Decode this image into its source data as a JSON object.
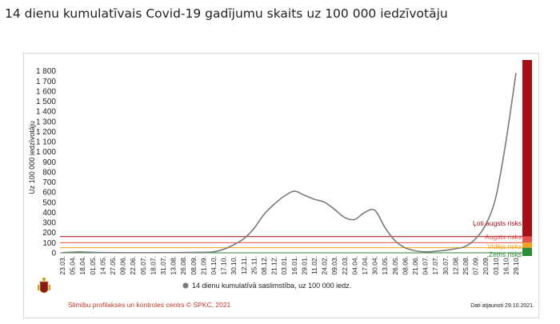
{
  "title": "14 dienu kumulatīvais Covid-19 gadījumu skaits uz 100 000 iedzīvotāju",
  "colors": {
    "line": "#7a7a7a",
    "very_high": "#a50f15",
    "high": "#e8504e",
    "medium": "#f4a11d",
    "low": "#2e8b3a",
    "grid": "#e6e6e6"
  },
  "chart_data": {
    "type": "line",
    "title": "",
    "xlabel": "",
    "ylabel": "Uz 100 000 iedzīvotāju",
    "ylim": [
      0,
      1900
    ],
    "yticks": [
      0,
      100,
      200,
      300,
      400,
      500,
      600,
      700,
      800,
      900,
      1000,
      1100,
      1200,
      1300,
      1400,
      1500,
      1600,
      1700,
      1800
    ],
    "ytick_labels": [
      "0",
      "100",
      "200",
      "300",
      "400",
      "500",
      "600",
      "700",
      "800",
      "900",
      "1 000",
      "1 100",
      "1 200",
      "1 300",
      "1 400",
      "1 500",
      "1 600",
      "1 700",
      "1 800"
    ],
    "xticks": [
      "23.03.",
      "05.04.",
      "18.04.",
      "01.05.",
      "14.05.",
      "27.05.",
      "09.06.",
      "22.06.",
      "05.07.",
      "18.07.",
      "31.07.",
      "13.08.",
      "26.08.",
      "08.09.",
      "21.09.",
      "04.10.",
      "17.10.",
      "30.10.",
      "12.11.",
      "25.11.",
      "08.12.",
      "21.12.",
      "03.01.",
      "16.01.",
      "29.01.",
      "11.02.",
      "24.02.",
      "09.03.",
      "22.03.",
      "04.04.",
      "17.04.",
      "30.04.",
      "13.05.",
      "26.05.",
      "08.06.",
      "21.06.",
      "04.07.",
      "17.07.",
      "30.07.",
      "12.08.",
      "25.08.",
      "07.09.",
      "20.09.",
      "03.10.",
      "16.10.",
      "29.10."
    ],
    "series": [
      {
        "name": "14 dienu kumulatīvā saslimstība, uz 100 000 iedz.",
        "x": [
          "23.03.",
          "05.04.",
          "18.04.",
          "01.05.",
          "14.05.",
          "27.05.",
          "09.06.",
          "22.06.",
          "05.07.",
          "18.07.",
          "31.07.",
          "13.08.",
          "26.08.",
          "08.09.",
          "21.09.",
          "04.10.",
          "17.10.",
          "30.10.",
          "12.11.",
          "25.11.",
          "08.12.",
          "21.12.",
          "03.01.",
          "16.01.",
          "29.01.",
          "11.02.",
          "24.02.",
          "09.03.",
          "22.03.",
          "04.04.",
          "17.04.",
          "30.04.",
          "13.05.",
          "26.05.",
          "08.06.",
          "21.06.",
          "04.07.",
          "17.07.",
          "30.07.",
          "12.08.",
          "25.08.",
          "07.09.",
          "20.09.",
          "03.10.",
          "16.10.",
          "29.10."
        ],
        "values": [
          2,
          7,
          8,
          5,
          3,
          2,
          1,
          1,
          1,
          1,
          2,
          2,
          3,
          4,
          5,
          10,
          35,
          80,
          140,
          240,
          380,
          480,
          560,
          610,
          570,
          530,
          500,
          430,
          350,
          330,
          400,
          420,
          250,
          120,
          50,
          20,
          10,
          15,
          25,
          40,
          65,
          140,
          280,
          550,
          1100,
          1780
        ]
      }
    ],
    "risk_levels": [
      {
        "label": "Ļoti augsts risks",
        "from": 160,
        "to": 1900,
        "color": "#a50f15"
      },
      {
        "label": "Augsts risks",
        "from": 100,
        "to": 160,
        "color": "#e8504e"
      },
      {
        "label": "Vidējs risks",
        "from": 50,
        "to": 100,
        "color": "#f4a11d"
      },
      {
        "label": "Zems risks",
        "from": 0,
        "to": 50,
        "color": "#2e8b3a"
      }
    ],
    "risk_thresholds": [
      {
        "value": 160,
        "color": "#a50f15"
      },
      {
        "value": 100,
        "color": "#e8504e"
      },
      {
        "value": 50,
        "color": "#f4a11d"
      },
      {
        "value": 0,
        "color": "#2e8b3a"
      }
    ],
    "legend": {
      "placement": "bottom"
    },
    "grid": false
  },
  "footer": {
    "source": "Slimību profilakses un kontroles centrs © SPKC, 2021",
    "updated": "Dati atjaunoti 29.10.2021."
  }
}
